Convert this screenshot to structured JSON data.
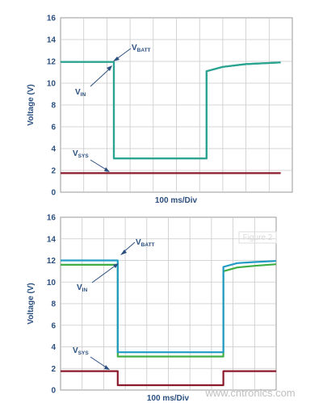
{
  "chart_data": [
    {
      "type": "line",
      "xlabel": "100 ms/Div",
      "ylabel": "Voltage (V)",
      "ylim": [
        0,
        16
      ],
      "yticks": [
        0,
        2,
        4,
        6,
        8,
        10,
        12,
        14,
        16
      ],
      "x_divisions": 10,
      "grid": true,
      "series": [
        {
          "name": "VBATT",
          "color": "#2aa391",
          "x": [
            0,
            2.3,
            2.3,
            6.3,
            6.3,
            7,
            8,
            9.5
          ],
          "y": [
            11.95,
            11.95,
            3.1,
            3.1,
            11.1,
            11.5,
            11.75,
            11.9
          ]
        },
        {
          "name": "VIN",
          "color": "#2aa391",
          "x": [
            0,
            2.3,
            2.3,
            6.3,
            6.3,
            7,
            8,
            9.5
          ],
          "y": [
            11.95,
            11.95,
            3.1,
            3.1,
            11.1,
            11.5,
            11.75,
            11.9
          ]
        },
        {
          "name": "VSYS",
          "color": "#8b1a2b",
          "x": [
            0,
            9.5
          ],
          "y": [
            1.75,
            1.75
          ]
        }
      ],
      "annotations": [
        {
          "main": "V",
          "sub": "BATT"
        },
        {
          "main": "V",
          "sub": "IN"
        },
        {
          "main": "V",
          "sub": "SYS"
        }
      ]
    },
    {
      "type": "line",
      "xlabel": "100 ms/Div",
      "ylabel": "Voltage (V)",
      "ylim": [
        0,
        16
      ],
      "yticks": [
        0,
        2,
        4,
        6,
        8,
        10,
        12,
        14,
        16
      ],
      "x_divisions": 10,
      "grid": true,
      "series": [
        {
          "name": "VBATT",
          "color": "#1f9bc4",
          "x": [
            0,
            2.65,
            2.65,
            7.55,
            7.55,
            8.2,
            9,
            10
          ],
          "y": [
            12.0,
            12.0,
            3.5,
            3.5,
            11.4,
            11.75,
            11.85,
            11.95
          ]
        },
        {
          "name": "VIN",
          "color": "#3fae45",
          "x": [
            0,
            2.65,
            2.65,
            7.55,
            7.55,
            8.2,
            9,
            10
          ],
          "y": [
            11.6,
            11.6,
            3.1,
            3.1,
            11.0,
            11.35,
            11.5,
            11.65
          ]
        },
        {
          "name": "VSYS",
          "color": "#8b1a2b",
          "x": [
            0,
            2.65,
            2.65,
            7.55,
            7.55,
            10
          ],
          "y": [
            1.75,
            1.75,
            0.45,
            0.45,
            1.75,
            1.75
          ]
        }
      ],
      "annotations": [
        {
          "main": "V",
          "sub": "BATT"
        },
        {
          "main": "V",
          "sub": "IN"
        },
        {
          "main": "V",
          "sub": "SYS"
        }
      ]
    }
  ],
  "watermark": {
    "logo_text": "Figure 2",
    "site_text": "www.cntronics.com"
  },
  "colors": {
    "grid": "#c9c9c9",
    "frame": "#9a9a9a",
    "label": "#2b4f7f"
  }
}
